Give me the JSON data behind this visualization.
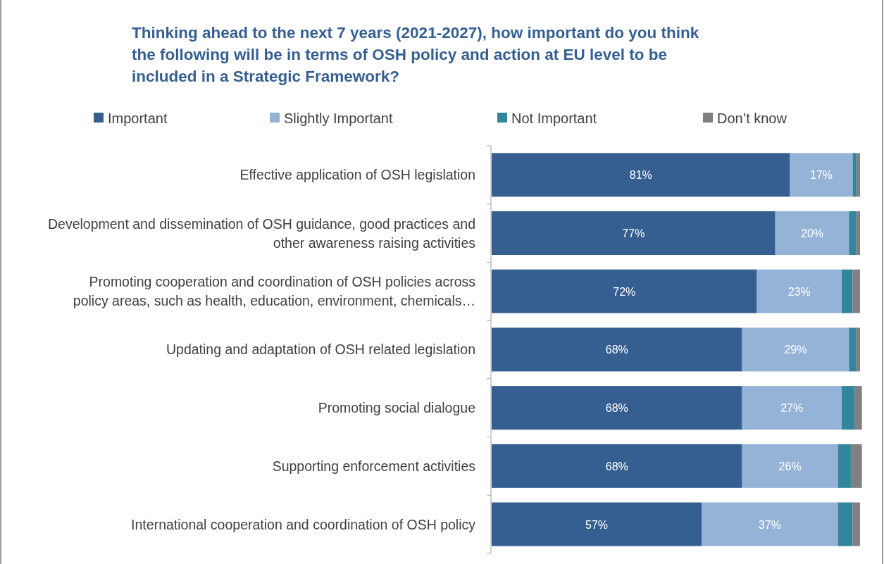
{
  "chart_data": {
    "type": "bar",
    "orientation": "horizontal",
    "stacked": true,
    "title": "Thinking ahead to the next 7 years (2021-2027),  how important do you think the following will be in terms of OSH policy and action at EU level to be included in a Strategic  Framework?",
    "categories": [
      "Effective application of OSH legislation",
      "Development and dissemination of OSH guidance, good practices and other awareness raising activities",
      "Promoting cooperation and coordination of OSH policies across policy areas, such as health, education, environment, chemicals…",
      "Updating and adaptation of OSH related legislation",
      "Promoting social dialogue",
      "Supporting enforcement activities",
      "International cooperation and coordination of OSH policy"
    ],
    "series": [
      {
        "name": "Important",
        "color": "#355f91",
        "values": [
          81,
          77,
          72,
          68,
          68,
          68,
          57
        ],
        "value_labels": [
          "81%",
          "77%",
          "72%",
          "68%",
          "68%",
          "68%",
          "57%"
        ]
      },
      {
        "name": "Slightly Important",
        "color": "#95b3d7",
        "values": [
          17,
          20,
          23,
          29,
          27,
          26,
          37
        ],
        "value_labels": [
          "17%",
          "20%",
          "23%",
          "29%",
          "27%",
          "26%",
          "37%"
        ]
      },
      {
        "name": "Not Important",
        "color": "#31859c",
        "values": [
          1,
          2,
          3,
          2,
          3.5,
          3.5,
          4
        ]
      },
      {
        "name": "Don’t know",
        "color": "#808080",
        "values": [
          1,
          1,
          2,
          1,
          2,
          3,
          2
        ]
      }
    ],
    "legend": "top"
  }
}
